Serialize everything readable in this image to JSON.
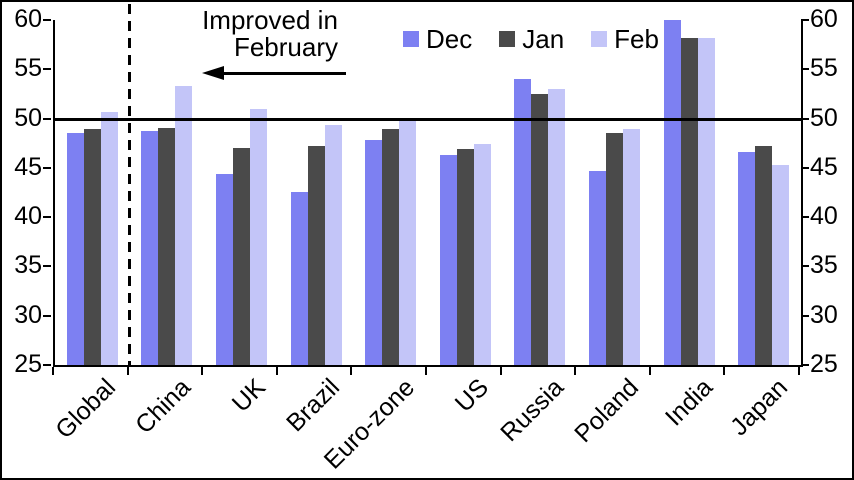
{
  "chart_data": {
    "type": "bar",
    "title": "",
    "xlabel": "",
    "ylabel": "",
    "categories": [
      "Global",
      "China",
      "UK",
      "Brazil",
      "Euro-zone",
      "US",
      "Russia",
      "Poland",
      "India",
      "Japan"
    ],
    "series": [
      {
        "name": "Dec",
        "color": "#7D80F2",
        "values": [
          48.5,
          48.7,
          44.4,
          42.6,
          47.8,
          46.3,
          54.0,
          44.7,
          60.0,
          46.6
        ]
      },
      {
        "name": "Jan",
        "color": "#4A4A4A",
        "values": [
          48.9,
          49.0,
          47.0,
          47.2,
          48.9,
          46.9,
          52.5,
          48.5,
          58.2,
          47.2
        ]
      },
      {
        "name": "Feb",
        "color": "#C3C5F8",
        "values": [
          50.7,
          53.3,
          51.0,
          49.4,
          50.0,
          47.4,
          53.0,
          48.9,
          58.2,
          45.3
        ]
      }
    ],
    "ylim": [
      25,
      60
    ],
    "yticks": [
      25,
      30,
      35,
      40,
      45,
      50,
      55,
      60
    ],
    "y_axis_sides": "both",
    "grid": false,
    "legend_position": "top-center",
    "reference_line_y": 50,
    "dashed_separator_after_category": "Global",
    "annotation": {
      "line1": "Improved in",
      "line2": "February",
      "arrow_direction": "left"
    }
  },
  "colors": {
    "background": "#FFFFFF",
    "axis": "#000000",
    "reference_line": "#000000",
    "dashed_line": "#000000",
    "text": "#000000"
  }
}
